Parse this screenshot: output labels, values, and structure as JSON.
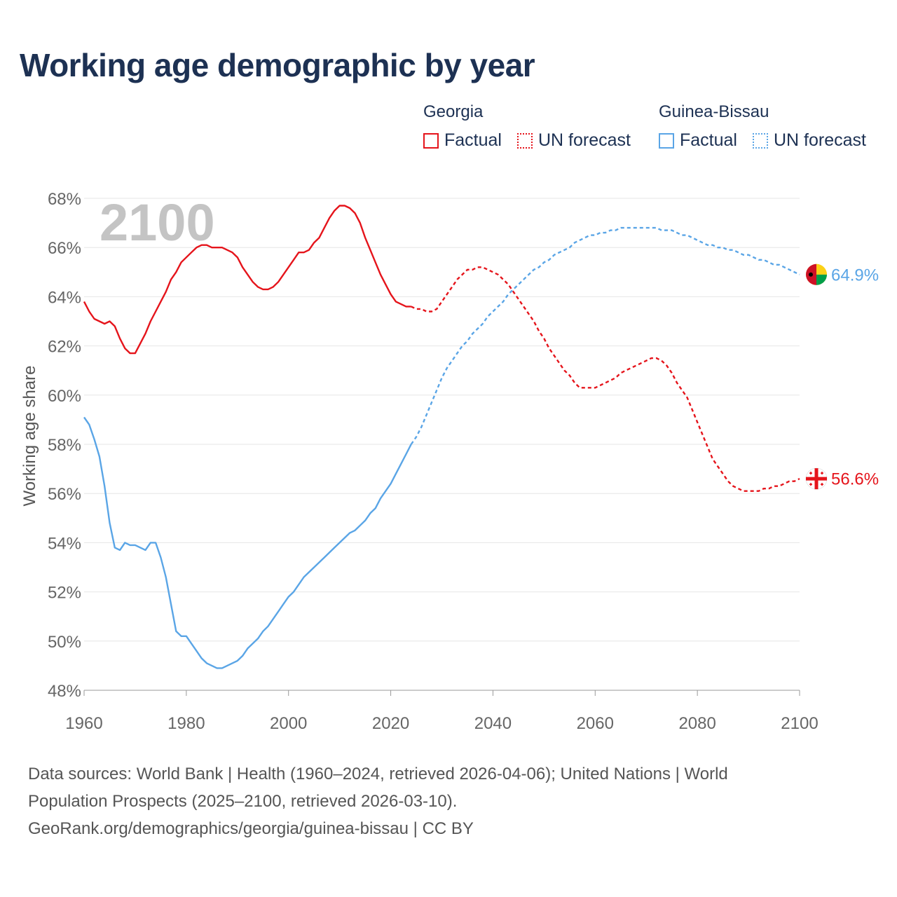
{
  "title": "Working age demographic by year",
  "legend": {
    "groups": [
      {
        "name": "Georgia",
        "factual_label": "Factual",
        "forecast_label": "UN forecast",
        "color": "#e5141b"
      },
      {
        "name": "Guinea-Bissau",
        "factual_label": "Factual",
        "forecast_label": "UN forecast",
        "color": "#5aa5e6"
      }
    ]
  },
  "year_watermark": "2100",
  "footer": {
    "line1": "Data sources: World Bank | Health (1960–2024, retrieved 2026-04-06); United Nations | World",
    "line2": "Population Prospects (2025–2100, retrieved 2026-03-10).",
    "line3": "GeoRank.org/demographics/georgia/guinea-bissau | CC BY"
  },
  "chart_data": {
    "type": "line",
    "title": "Working age demographic by year",
    "xlabel": "",
    "ylabel": "Working age share",
    "xlim": [
      1960,
      2100
    ],
    "ylim": [
      48,
      68
    ],
    "x_ticks": [
      "1960",
      "1980",
      "2000",
      "2020",
      "2040",
      "2060",
      "2080",
      "2100"
    ],
    "y_ticks": [
      "48%",
      "50%",
      "52%",
      "54%",
      "56%",
      "58%",
      "60%",
      "62%",
      "64%",
      "66%",
      "68%"
    ],
    "factual_end_year": 2024,
    "series": [
      {
        "name": "Georgia",
        "color": "#e5141b",
        "end_label": "56.6%",
        "flag": "georgia-flag",
        "points": [
          [
            1960,
            63.8
          ],
          [
            1961,
            63.4
          ],
          [
            1962,
            63.1
          ],
          [
            1963,
            63.0
          ],
          [
            1964,
            62.9
          ],
          [
            1965,
            63.0
          ],
          [
            1966,
            62.8
          ],
          [
            1967,
            62.3
          ],
          [
            1968,
            61.9
          ],
          [
            1969,
            61.7
          ],
          [
            1970,
            61.7
          ],
          [
            1971,
            62.1
          ],
          [
            1972,
            62.5
          ],
          [
            1973,
            63.0
          ],
          [
            1974,
            63.4
          ],
          [
            1975,
            63.8
          ],
          [
            1976,
            64.2
          ],
          [
            1977,
            64.7
          ],
          [
            1978,
            65.0
          ],
          [
            1979,
            65.4
          ],
          [
            1980,
            65.6
          ],
          [
            1981,
            65.8
          ],
          [
            1982,
            66.0
          ],
          [
            1983,
            66.1
          ],
          [
            1984,
            66.1
          ],
          [
            1985,
            66.0
          ],
          [
            1986,
            66.0
          ],
          [
            1987,
            66.0
          ],
          [
            1988,
            65.9
          ],
          [
            1989,
            65.8
          ],
          [
            1990,
            65.6
          ],
          [
            1991,
            65.2
          ],
          [
            1992,
            64.9
          ],
          [
            1993,
            64.6
          ],
          [
            1994,
            64.4
          ],
          [
            1995,
            64.3
          ],
          [
            1996,
            64.3
          ],
          [
            1997,
            64.4
          ],
          [
            1998,
            64.6
          ],
          [
            1999,
            64.9
          ],
          [
            2000,
            65.2
          ],
          [
            2001,
            65.5
          ],
          [
            2002,
            65.8
          ],
          [
            2003,
            65.8
          ],
          [
            2004,
            65.9
          ],
          [
            2005,
            66.2
          ],
          [
            2006,
            66.4
          ],
          [
            2007,
            66.8
          ],
          [
            2008,
            67.2
          ],
          [
            2009,
            67.5
          ],
          [
            2010,
            67.7
          ],
          [
            2011,
            67.7
          ],
          [
            2012,
            67.6
          ],
          [
            2013,
            67.4
          ],
          [
            2014,
            67.0
          ],
          [
            2015,
            66.4
          ],
          [
            2016,
            65.9
          ],
          [
            2017,
            65.4
          ],
          [
            2018,
            64.9
          ],
          [
            2019,
            64.5
          ],
          [
            2020,
            64.1
          ],
          [
            2021,
            63.8
          ],
          [
            2022,
            63.7
          ],
          [
            2023,
            63.6
          ],
          [
            2024,
            63.6
          ],
          [
            2025,
            63.5
          ],
          [
            2026,
            63.5
          ],
          [
            2027,
            63.4
          ],
          [
            2028,
            63.4
          ],
          [
            2029,
            63.5
          ],
          [
            2030,
            63.8
          ],
          [
            2031,
            64.1
          ],
          [
            2032,
            64.4
          ],
          [
            2033,
            64.7
          ],
          [
            2034,
            64.9
          ],
          [
            2035,
            65.1
          ],
          [
            2036,
            65.1
          ],
          [
            2037,
            65.2
          ],
          [
            2038,
            65.2
          ],
          [
            2039,
            65.1
          ],
          [
            2040,
            65.0
          ],
          [
            2041,
            64.9
          ],
          [
            2042,
            64.7
          ],
          [
            2043,
            64.5
          ],
          [
            2044,
            64.2
          ],
          [
            2045,
            63.9
          ],
          [
            2046,
            63.6
          ],
          [
            2047,
            63.3
          ],
          [
            2048,
            63.0
          ],
          [
            2049,
            62.6
          ],
          [
            2050,
            62.3
          ],
          [
            2051,
            61.9
          ],
          [
            2052,
            61.6
          ],
          [
            2053,
            61.3
          ],
          [
            2054,
            61.0
          ],
          [
            2055,
            60.8
          ],
          [
            2056,
            60.5
          ],
          [
            2057,
            60.3
          ],
          [
            2058,
            60.3
          ],
          [
            2059,
            60.3
          ],
          [
            2060,
            60.3
          ],
          [
            2061,
            60.4
          ],
          [
            2062,
            60.5
          ],
          [
            2063,
            60.6
          ],
          [
            2064,
            60.7
          ],
          [
            2065,
            60.9
          ],
          [
            2066,
            61.0
          ],
          [
            2067,
            61.1
          ],
          [
            2068,
            61.2
          ],
          [
            2069,
            61.3
          ],
          [
            2070,
            61.4
          ],
          [
            2071,
            61.5
          ],
          [
            2072,
            61.5
          ],
          [
            2073,
            61.4
          ],
          [
            2074,
            61.2
          ],
          [
            2075,
            60.9
          ],
          [
            2076,
            60.5
          ],
          [
            2077,
            60.2
          ],
          [
            2078,
            59.9
          ],
          [
            2079,
            59.4
          ],
          [
            2080,
            58.9
          ],
          [
            2081,
            58.4
          ],
          [
            2082,
            57.9
          ],
          [
            2083,
            57.4
          ],
          [
            2084,
            57.1
          ],
          [
            2085,
            56.8
          ],
          [
            2086,
            56.5
          ],
          [
            2087,
            56.3
          ],
          [
            2088,
            56.2
          ],
          [
            2089,
            56.1
          ],
          [
            2090,
            56.1
          ],
          [
            2091,
            56.1
          ],
          [
            2092,
            56.1
          ],
          [
            2093,
            56.2
          ],
          [
            2094,
            56.2
          ],
          [
            2095,
            56.3
          ],
          [
            2096,
            56.3
          ],
          [
            2097,
            56.4
          ],
          [
            2098,
            56.5
          ],
          [
            2099,
            56.5
          ],
          [
            2100,
            56.6
          ]
        ]
      },
      {
        "name": "Guinea-Bissau",
        "color": "#5aa5e6",
        "end_label": "64.9%",
        "flag": "guinea-bissau-flag",
        "points": [
          [
            1960,
            59.1
          ],
          [
            1961,
            58.8
          ],
          [
            1962,
            58.2
          ],
          [
            1963,
            57.5
          ],
          [
            1964,
            56.3
          ],
          [
            1965,
            54.8
          ],
          [
            1966,
            53.8
          ],
          [
            1967,
            53.7
          ],
          [
            1968,
            54.0
          ],
          [
            1969,
            53.9
          ],
          [
            1970,
            53.9
          ],
          [
            1971,
            53.8
          ],
          [
            1972,
            53.7
          ],
          [
            1973,
            54.0
          ],
          [
            1974,
            54.0
          ],
          [
            1975,
            53.4
          ],
          [
            1976,
            52.6
          ],
          [
            1977,
            51.5
          ],
          [
            1978,
            50.4
          ],
          [
            1979,
            50.2
          ],
          [
            1980,
            50.2
          ],
          [
            1981,
            49.9
          ],
          [
            1982,
            49.6
          ],
          [
            1983,
            49.3
          ],
          [
            1984,
            49.1
          ],
          [
            1985,
            49.0
          ],
          [
            1986,
            48.9
          ],
          [
            1987,
            48.9
          ],
          [
            1988,
            49.0
          ],
          [
            1989,
            49.1
          ],
          [
            1990,
            49.2
          ],
          [
            1991,
            49.4
          ],
          [
            1992,
            49.7
          ],
          [
            1993,
            49.9
          ],
          [
            1994,
            50.1
          ],
          [
            1995,
            50.4
          ],
          [
            1996,
            50.6
          ],
          [
            1997,
            50.9
          ],
          [
            1998,
            51.2
          ],
          [
            1999,
            51.5
          ],
          [
            2000,
            51.8
          ],
          [
            2001,
            52.0
          ],
          [
            2002,
            52.3
          ],
          [
            2003,
            52.6
          ],
          [
            2004,
            52.8
          ],
          [
            2005,
            53.0
          ],
          [
            2006,
            53.2
          ],
          [
            2007,
            53.4
          ],
          [
            2008,
            53.6
          ],
          [
            2009,
            53.8
          ],
          [
            2010,
            54.0
          ],
          [
            2011,
            54.2
          ],
          [
            2012,
            54.4
          ],
          [
            2013,
            54.5
          ],
          [
            2014,
            54.7
          ],
          [
            2015,
            54.9
          ],
          [
            2016,
            55.2
          ],
          [
            2017,
            55.4
          ],
          [
            2018,
            55.8
          ],
          [
            2019,
            56.1
          ],
          [
            2020,
            56.4
          ],
          [
            2021,
            56.8
          ],
          [
            2022,
            57.2
          ],
          [
            2023,
            57.6
          ],
          [
            2024,
            58.0
          ],
          [
            2025,
            58.3
          ],
          [
            2026,
            58.7
          ],
          [
            2027,
            59.2
          ],
          [
            2028,
            59.7
          ],
          [
            2029,
            60.2
          ],
          [
            2030,
            60.7
          ],
          [
            2031,
            61.1
          ],
          [
            2032,
            61.4
          ],
          [
            2033,
            61.7
          ],
          [
            2034,
            62.0
          ],
          [
            2035,
            62.2
          ],
          [
            2036,
            62.5
          ],
          [
            2037,
            62.7
          ],
          [
            2038,
            62.9
          ],
          [
            2039,
            63.2
          ],
          [
            2040,
            63.4
          ],
          [
            2041,
            63.6
          ],
          [
            2042,
            63.8
          ],
          [
            2043,
            64.1
          ],
          [
            2044,
            64.3
          ],
          [
            2045,
            64.5
          ],
          [
            2046,
            64.7
          ],
          [
            2047,
            64.9
          ],
          [
            2048,
            65.1
          ],
          [
            2049,
            65.2
          ],
          [
            2050,
            65.4
          ],
          [
            2051,
            65.5
          ],
          [
            2052,
            65.7
          ],
          [
            2053,
            65.8
          ],
          [
            2054,
            65.9
          ],
          [
            2055,
            66.0
          ],
          [
            2056,
            66.2
          ],
          [
            2057,
            66.3
          ],
          [
            2058,
            66.4
          ],
          [
            2059,
            66.5
          ],
          [
            2060,
            66.5
          ],
          [
            2061,
            66.6
          ],
          [
            2062,
            66.6
          ],
          [
            2063,
            66.7
          ],
          [
            2064,
            66.7
          ],
          [
            2065,
            66.8
          ],
          [
            2066,
            66.8
          ],
          [
            2067,
            66.8
          ],
          [
            2068,
            66.8
          ],
          [
            2069,
            66.8
          ],
          [
            2070,
            66.8
          ],
          [
            2071,
            66.8
          ],
          [
            2072,
            66.8
          ],
          [
            2073,
            66.7
          ],
          [
            2074,
            66.7
          ],
          [
            2075,
            66.7
          ],
          [
            2076,
            66.6
          ],
          [
            2077,
            66.5
          ],
          [
            2078,
            66.5
          ],
          [
            2079,
            66.4
          ],
          [
            2080,
            66.3
          ],
          [
            2081,
            66.2
          ],
          [
            2082,
            66.1
          ],
          [
            2083,
            66.1
          ],
          [
            2084,
            66.0
          ],
          [
            2085,
            66.0
          ],
          [
            2086,
            65.9
          ],
          [
            2087,
            65.9
          ],
          [
            2088,
            65.8
          ],
          [
            2089,
            65.7
          ],
          [
            2090,
            65.7
          ],
          [
            2091,
            65.6
          ],
          [
            2092,
            65.5
          ],
          [
            2093,
            65.5
          ],
          [
            2094,
            65.4
          ],
          [
            2095,
            65.3
          ],
          [
            2096,
            65.3
          ],
          [
            2097,
            65.2
          ],
          [
            2098,
            65.1
          ],
          [
            2099,
            65.0
          ],
          [
            2100,
            64.9
          ]
        ]
      }
    ]
  }
}
